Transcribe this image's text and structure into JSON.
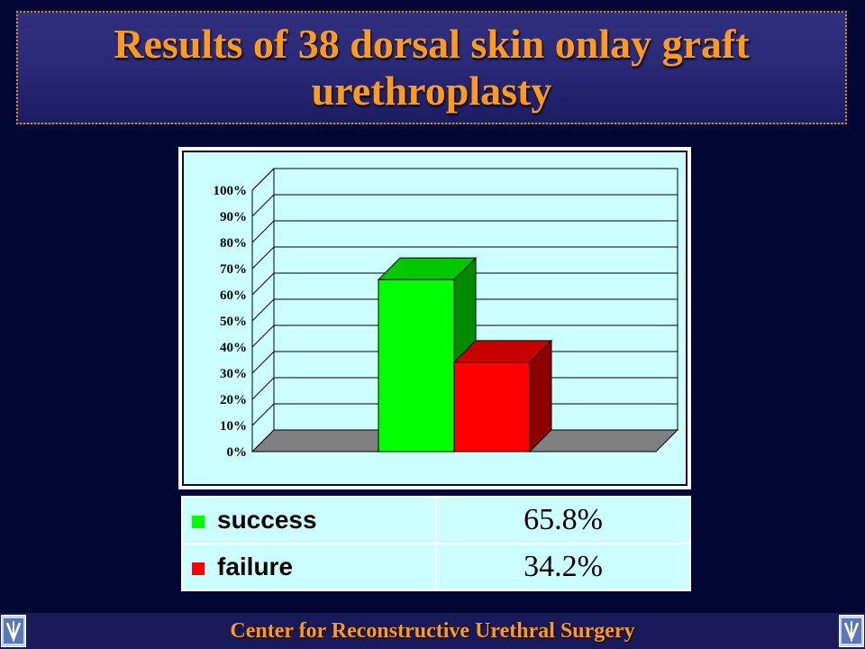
{
  "title": {
    "line1": "Results of 38 dorsal skin onlay graft",
    "line2": "urethroplasty"
  },
  "chart_data": {
    "type": "bar",
    "categories": [
      "success",
      "failure"
    ],
    "values": [
      65.8,
      34.2
    ],
    "colors": [
      "#00ff00",
      "#ff0000"
    ],
    "ylim": [
      0,
      100
    ],
    "y_ticks": [
      "0%",
      "10%",
      "20%",
      "30%",
      "40%",
      "50%",
      "60%",
      "70%",
      "80%",
      "90%",
      "100%"
    ],
    "grid": true,
    "three_d": true
  },
  "legend": {
    "rows": [
      {
        "label": "success",
        "value": "65.8%",
        "color": "#00ff00"
      },
      {
        "label": "failure",
        "value": "34.2%",
        "color": "#ff0000"
      }
    ]
  },
  "footer": {
    "text": "Center for Reconstructive Urethral Surgery",
    "logo_icon": "institution-logo-icon"
  },
  "colors": {
    "background": "#020833",
    "title_text": "#ff9a1a",
    "chart_background": "#ccffff"
  }
}
